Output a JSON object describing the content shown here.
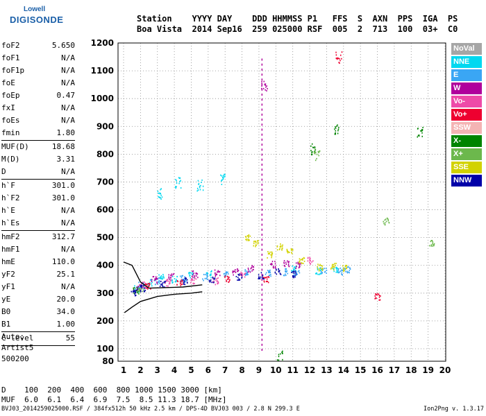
{
  "logo": {
    "line1": "Lowell",
    "line2": "DIGISONDE"
  },
  "header": {
    "line1": "Station    YYYY DAY    DDD HHMMSS P1   FFS  S  AXN  PPS  IGA  PS",
    "line2": "Boa Vista  2014 Sep16  259 025000 RSF  005  2  713  100  03+  C0"
  },
  "params": [
    {
      "name": "foF2",
      "value": "5.650"
    },
    {
      "name": "foF1",
      "value": "N/A"
    },
    {
      "name": "foF1p",
      "value": "N/A"
    },
    {
      "name": "foE",
      "value": "N/A"
    },
    {
      "name": "foEp",
      "value": "0.47"
    },
    {
      "name": "fxI",
      "value": "N/A"
    },
    {
      "name": "foEs",
      "value": "N/A"
    },
    {
      "name": "fmin",
      "value": "1.80"
    },
    {
      "sep": true
    },
    {
      "name": "MUF(D)",
      "value": "18.68"
    },
    {
      "name": "M(D)",
      "value": "3.31"
    },
    {
      "name": "D",
      "value": "N/A"
    },
    {
      "sep": true
    },
    {
      "name": "h`F",
      "value": "301.0"
    },
    {
      "name": "h`F2",
      "value": "301.0"
    },
    {
      "name": "h`E",
      "value": "N/A"
    },
    {
      "name": "h`Es",
      "value": "N/A"
    },
    {
      "sep": true
    },
    {
      "name": "hmF2",
      "value": "312.7"
    },
    {
      "name": "hmF1",
      "value": "N/A"
    },
    {
      "name": "hmE",
      "value": "110.0"
    },
    {
      "name": "yF2",
      "value": "25.1"
    },
    {
      "name": "yF1",
      "value": "N/A"
    },
    {
      "name": "yE",
      "value": "20.0"
    },
    {
      "name": "B0",
      "value": "34.0"
    },
    {
      "name": "B1",
      "value": "1.00"
    },
    {
      "sep": true
    },
    {
      "name": "C-level",
      "value": "55"
    },
    {
      "sep": true
    }
  ],
  "auto": {
    "l1": "Auto:",
    "l2": "Artist5",
    "l3": "500200"
  },
  "legend": [
    {
      "label": "NoVal",
      "color": "#a6a6a6"
    },
    {
      "label": "NNE",
      "color": "#00d8f0"
    },
    {
      "label": "E",
      "color": "#3aa6f4"
    },
    {
      "label": "W",
      "color": "#b0009c"
    },
    {
      "label": "Vo-",
      "color": "#ee4aa8"
    },
    {
      "label": "Vo+",
      "color": "#ee0030"
    },
    {
      "label": "SSW",
      "color": "#f4b4b4"
    },
    {
      "label": "X-",
      "color": "#008400"
    },
    {
      "label": "X+",
      "color": "#6cb84c"
    },
    {
      "label": "SSE",
      "color": "#d2d200"
    },
    {
      "label": "NNW",
      "color": "#0000a8"
    }
  ],
  "footer": {
    "line1": "D    100  200  400  600  800 1000 1500 3000 [km]",
    "line2": "MUF  6.0  6.1  6.4  6.9  7.5  8.5 11.3 18.7 [MHz]"
  },
  "bottom": "BVJ03_2014259025000.RSF / 384fx512h 50 kHz 2.5 km / DPS-4D BVJ03 003 / 2.8 N 299.3 E",
  "version": "Ion2Png v. 1.3.17",
  "chart_data": {
    "type": "scatter",
    "xlim": [
      1,
      20
    ],
    "ylim": [
      80,
      1200
    ],
    "x_ticks": [
      1,
      2,
      3,
      4,
      5,
      6,
      7,
      8,
      9,
      10,
      11,
      12,
      13,
      14,
      15,
      16,
      17,
      18,
      19,
      20
    ],
    "y_ticks": [
      80,
      100,
      200,
      300,
      400,
      500,
      600,
      700,
      800,
      900,
      1000,
      1100,
      1200
    ],
    "grid": "dotted",
    "legend_placement": "right",
    "series": [
      {
        "name": "NNE",
        "color": "#00d8f0",
        "points": [
          [
            1.8,
            318
          ],
          [
            2.5,
            340
          ],
          [
            3.2,
            360
          ],
          [
            4.0,
            352
          ],
          [
            5.0,
            365
          ],
          [
            6.0,
            370
          ],
          [
            3.1,
            660
          ],
          [
            4.2,
            700
          ],
          [
            5.5,
            690
          ],
          [
            6.8,
            710
          ],
          [
            11.0,
            390
          ],
          [
            12.5,
            382
          ],
          [
            13.5,
            388
          ]
        ]
      },
      {
        "name": "E",
        "color": "#3aa6f4",
        "points": [
          [
            2.0,
            330
          ],
          [
            3.0,
            345
          ],
          [
            4.5,
            355
          ],
          [
            5.8,
            360
          ],
          [
            7.0,
            370
          ],
          [
            8.3,
            378
          ],
          [
            9.5,
            375
          ],
          [
            10.5,
            378
          ],
          [
            11.2,
            372
          ],
          [
            12.8,
            385
          ],
          [
            13.8,
            380
          ],
          [
            14.2,
            388
          ]
        ]
      },
      {
        "name": "W",
        "color": "#b0009c",
        "points": [
          [
            1.9,
            322
          ],
          [
            2.8,
            350
          ],
          [
            3.8,
            362
          ],
          [
            5.2,
            370
          ],
          [
            6.5,
            375
          ],
          [
            7.6,
            380
          ],
          [
            8.5,
            390
          ],
          [
            9.3,
            1050
          ],
          [
            9.8,
            405
          ],
          [
            10.6,
            410
          ],
          [
            11.3,
            402
          ]
        ]
      },
      {
        "name": "Vo-",
        "color": "#ee4aa8",
        "points": [
          [
            2.2,
            330
          ],
          [
            3.6,
            340
          ],
          [
            5.1,
            348
          ],
          [
            6.4,
            345
          ],
          [
            8.0,
            370
          ],
          [
            12.0,
            420
          ]
        ]
      },
      {
        "name": "Vo+",
        "color": "#ee0030",
        "points": [
          [
            2.4,
            325
          ],
          [
            4.3,
            342
          ],
          [
            7.1,
            352
          ],
          [
            9.4,
            350
          ],
          [
            13.7,
            1150
          ],
          [
            16.0,
            290
          ]
        ]
      },
      {
        "name": "X-",
        "color": "#008400",
        "points": [
          [
            1.7,
            310
          ],
          [
            10.2,
            85
          ],
          [
            12.2,
            820
          ],
          [
            13.6,
            890
          ],
          [
            18.5,
            880
          ]
        ]
      },
      {
        "name": "X+",
        "color": "#6cb84c",
        "points": [
          [
            2.0,
            318
          ],
          [
            12.4,
            800
          ],
          [
            16.5,
            560
          ],
          [
            19.2,
            480
          ]
        ]
      },
      {
        "name": "SSE",
        "color": "#d2d200",
        "points": [
          [
            8.3,
            500
          ],
          [
            8.8,
            480
          ],
          [
            9.6,
            440
          ],
          [
            10.2,
            470
          ],
          [
            10.8,
            450
          ],
          [
            11.5,
            420
          ],
          [
            12.6,
            395
          ],
          [
            13.4,
            398
          ],
          [
            14.0,
            392
          ]
        ]
      },
      {
        "name": "NNW",
        "color": "#0000a8",
        "points": [
          [
            1.6,
            305
          ],
          [
            2.1,
            320
          ],
          [
            3.3,
            335
          ],
          [
            4.6,
            345
          ],
          [
            6.2,
            352
          ],
          [
            7.8,
            360
          ],
          [
            9.1,
            365
          ],
          [
            10.1,
            380
          ],
          [
            11.0,
            370
          ]
        ]
      }
    ],
    "profile": {
      "name": "profile",
      "points": [
        [
          1.05,
          230
        ],
        [
          1.5,
          250
        ],
        [
          2.0,
          270
        ],
        [
          3.0,
          288
        ],
        [
          4.0,
          296
        ],
        [
          5.0,
          300
        ],
        [
          5.65,
          305
        ]
      ]
    },
    "trace": {
      "name": "trace",
      "points": [
        [
          1.0,
          412
        ],
        [
          1.5,
          400
        ],
        [
          2.0,
          340
        ],
        [
          2.5,
          318
        ],
        [
          3.5,
          320
        ],
        [
          4.5,
          322
        ],
        [
          5.65,
          330
        ]
      ]
    }
  }
}
